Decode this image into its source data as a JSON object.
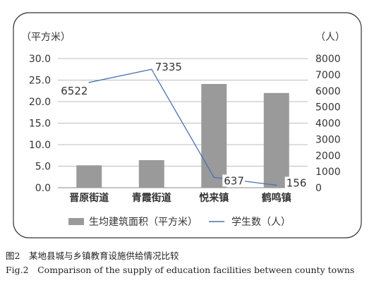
{
  "chart_data": {
    "type": "bar+line",
    "categories": [
      "晋原街道",
      "青霞街道",
      "悦来镇",
      "鹤鸣镇"
    ],
    "series": [
      {
        "name": "生均建筑面积（平方米）",
        "kind": "bar",
        "axis": "left",
        "values": [
          5.2,
          6.4,
          24.1,
          22.0
        ],
        "color": "#9a9a9a"
      },
      {
        "name": "学生数（人）",
        "kind": "line",
        "axis": "right",
        "values": [
          6522,
          7335,
          637,
          156
        ],
        "labels": [
          "6522",
          "7335",
          "637",
          "156"
        ],
        "color": "#4a72b0"
      }
    ],
    "y_left": {
      "unit": "（平方米）",
      "ylim": [
        0,
        30
      ],
      "ticks": [
        "0.0",
        "5.0",
        "10.0",
        "15.0",
        "20.0",
        "25.0",
        "30.0"
      ]
    },
    "y_right": {
      "unit": "（人）",
      "ylim": [
        0,
        8000
      ],
      "ticks": [
        "0",
        "1000",
        "2000",
        "3000",
        "4000",
        "5000",
        "6000",
        "7000",
        "8000"
      ]
    },
    "grid": true,
    "legend_position": "bottom",
    "legend": {
      "bar_label": "生均建筑面积（平方米）",
      "line_label": "学生数（人）"
    }
  },
  "caption": {
    "cn": "图2　某地县城与乡镇教育设施供给情况比较",
    "en": "Fig.2　Comparison of the supply of education facilities between county towns"
  }
}
